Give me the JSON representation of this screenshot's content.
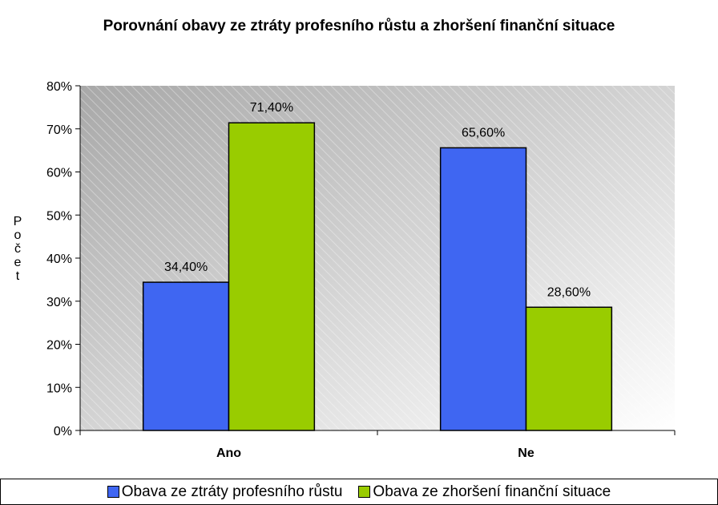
{
  "chart_data": {
    "type": "bar",
    "title": "Porovnání obavy ze ztráty profesního růstu a zhoršení finanční situace",
    "y_label": "Počet",
    "categories": [
      "Ano",
      "Ne"
    ],
    "series": [
      {
        "name": "Obava ze ztráty profesního růstu",
        "color": "#3f66f2",
        "values": [
          34.4,
          65.6
        ],
        "value_labels": [
          "34,40%",
          "65,60%"
        ]
      },
      {
        "name": "Obava ze zhoršení finanční situace",
        "color": "#99cc00",
        "values": [
          71.4,
          28.6
        ],
        "value_labels": [
          "71,40%",
          "28,60%"
        ]
      }
    ],
    "ylim": [
      0,
      80
    ],
    "yticks": [
      {
        "value": 0,
        "label": "0%"
      },
      {
        "value": 10,
        "label": "10%"
      },
      {
        "value": 20,
        "label": "20%"
      },
      {
        "value": 30,
        "label": "30%"
      },
      {
        "value": 40,
        "label": "40%"
      },
      {
        "value": 50,
        "label": "50%"
      },
      {
        "value": 60,
        "label": "60%"
      },
      {
        "value": 70,
        "label": "70%"
      },
      {
        "value": 80,
        "label": "80%"
      }
    ],
    "legend": "bottom"
  }
}
